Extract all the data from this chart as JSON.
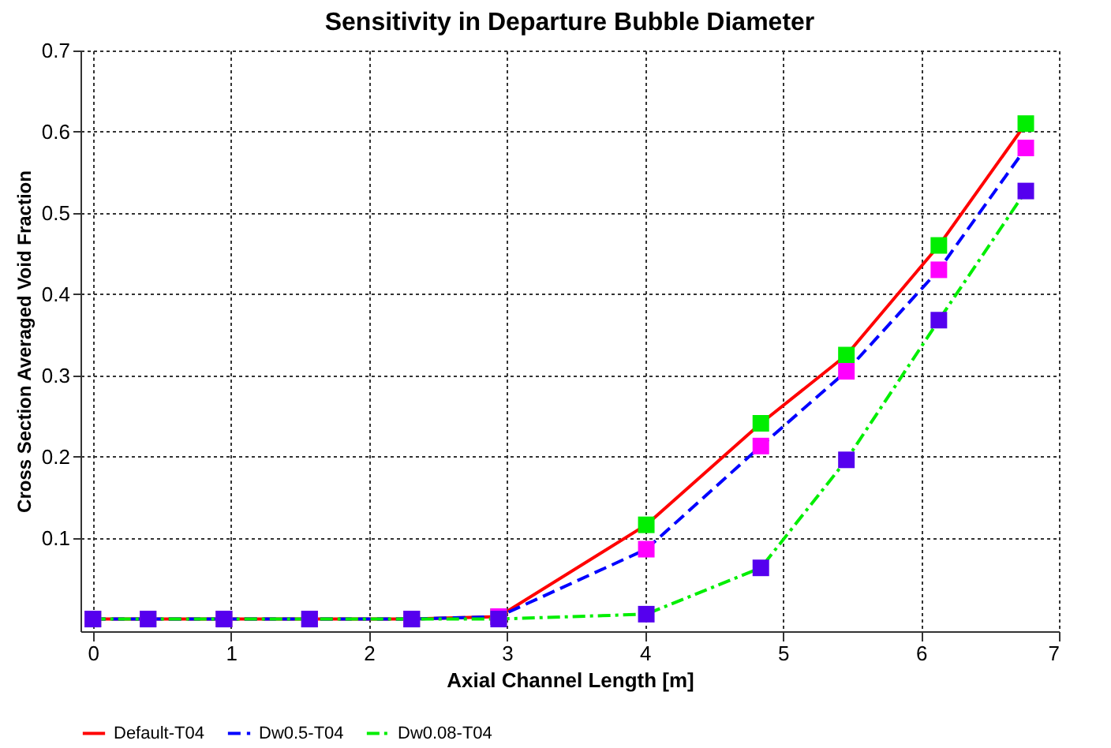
{
  "chart_data": {
    "type": "line",
    "title": "Sensitivity in Departure Bubble Diameter",
    "xlabel": "Axial Channel Length [m]",
    "ylabel": "Cross Section Averaged Void Fraction",
    "x": [
      0,
      0.4,
      0.95,
      1.57,
      2.31,
      2.94,
      4.01,
      4.84,
      5.46,
      6.13,
      6.76
    ],
    "series": [
      {
        "name": "Default-T04",
        "color": "#ff0000",
        "line_style": "solid",
        "colors": [
          "#00ee00",
          "#00ee00",
          "#00ee00",
          "#00ee00",
          "#00ee00",
          "#00ee00",
          "#00ee00",
          "#00ee00",
          "#00ee00",
          "#00ee00",
          "#00ee00"
        ],
        "values": [
          0,
          0,
          0,
          0,
          0,
          0.003,
          0.116,
          0.241,
          0.325,
          0.46,
          0.61
        ]
      },
      {
        "name": "Dw0.5-T04",
        "color": "#0000ff",
        "line_style": "dashed",
        "colors": [
          "#ff00ff",
          "#ff00ff",
          "#ff00ff",
          "#ff00ff",
          "#ff00ff",
          "#ff00ff",
          "#ff00ff",
          "#ff00ff",
          "#ff00ff",
          "#ff00ff",
          "#ff00ff"
        ],
        "values": [
          0,
          0,
          0,
          0,
          0,
          0.003,
          0.086,
          0.213,
          0.305,
          0.43,
          0.58
        ]
      },
      {
        "name": "Dw0.08-T04",
        "color": "#00ee00",
        "line_style": "dashdot",
        "colors": [
          "#5500ee",
          "#5500ee",
          "#5500ee",
          "#5500ee",
          "#5500ee",
          "#5500ee",
          "#5500ee",
          "#5500ee",
          "#5500ee",
          "#5500ee",
          "#5500ee"
        ],
        "values": [
          0,
          0,
          0,
          0,
          0,
          0,
          0.006,
          0.063,
          0.196,
          0.368,
          0.527
        ]
      }
    ],
    "xlim": [
      -0.09,
      7
    ],
    "xticks": [
      0,
      1,
      2,
      3,
      4,
      5,
      6,
      7
    ],
    "ylim": [
      -0.015,
      0.7
    ],
    "yticks": [
      0.1,
      0.2,
      0.3,
      0.4,
      0.5,
      0.6,
      0.7
    ],
    "grid": true,
    "legend": "bottom",
    "marker": "square"
  }
}
